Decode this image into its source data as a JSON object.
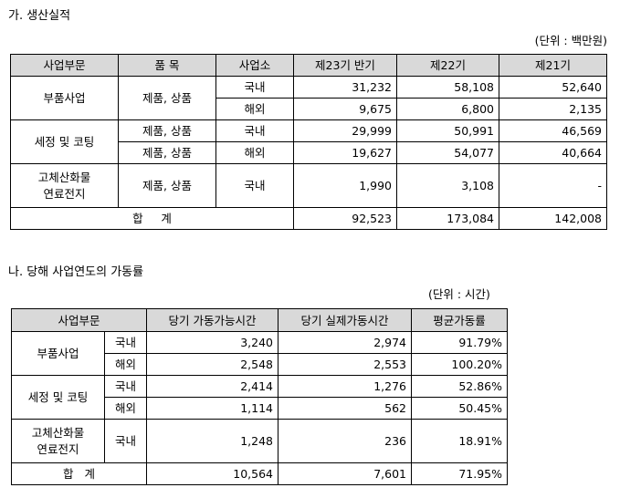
{
  "section1": {
    "title": "가. 생산실적",
    "unit": "(단위 : 백만원)",
    "headers": [
      "사업부문",
      "품  목",
      "사업소",
      "제23기 반기",
      "제22기",
      "제21기"
    ],
    "rows": [
      {
        "segment": "부품사업",
        "item": "제품, 상품",
        "site": "국내",
        "v1": "31,232",
        "v2": "58,108",
        "v3": "52,640"
      },
      {
        "site": "해외",
        "v1": "9,675",
        "v2": "6,800",
        "v3": "2,135"
      },
      {
        "segment": "세정 및 코팅",
        "item": "제품, 상품",
        "site": "국내",
        "v1": "29,999",
        "v2": "50,991",
        "v3": "46,569"
      },
      {
        "item": "제품, 상품",
        "site": "해외",
        "v1": "19,627",
        "v2": "54,077",
        "v3": "40,664"
      },
      {
        "segment_line1": "고체산화물",
        "segment_line2": "연료전지",
        "item": "제품, 상품",
        "site": "국내",
        "v1": "1,990",
        "v2": "3,108",
        "v3": "-"
      }
    ],
    "total": {
      "label": "합     계",
      "v1": "92,523",
      "v2": "173,084",
      "v3": "142,008"
    }
  },
  "section2": {
    "title": "나. 당해 사업연도의 가동률",
    "unit": "(단위 : 시간)",
    "headers": [
      "사업부문",
      "당기 가동가능시간",
      "당기 실제가동시간",
      "평균가동률"
    ],
    "rows": [
      {
        "segment": "부품사업",
        "site": "국내",
        "v1": "3,240",
        "v2": "2,974",
        "v3": "91.79%"
      },
      {
        "site": "해외",
        "v1": "2,548",
        "v2": "2,553",
        "v3": "100.20%"
      },
      {
        "segment": "세정 및 코팅",
        "site": "국내",
        "v1": "2,414",
        "v2": "1,276",
        "v3": "52.86%"
      },
      {
        "site": "해외",
        "v1": "1,114",
        "v2": "562",
        "v3": "50.45%"
      },
      {
        "segment_line1": "고체산화물",
        "segment_line2": "연료전지",
        "site": "국내",
        "v1": "1,248",
        "v2": "236",
        "v3": "18.91%"
      }
    ],
    "total": {
      "label": "합   계",
      "v1": "10,564",
      "v2": "7,601",
      "v3": "71.95%"
    }
  }
}
